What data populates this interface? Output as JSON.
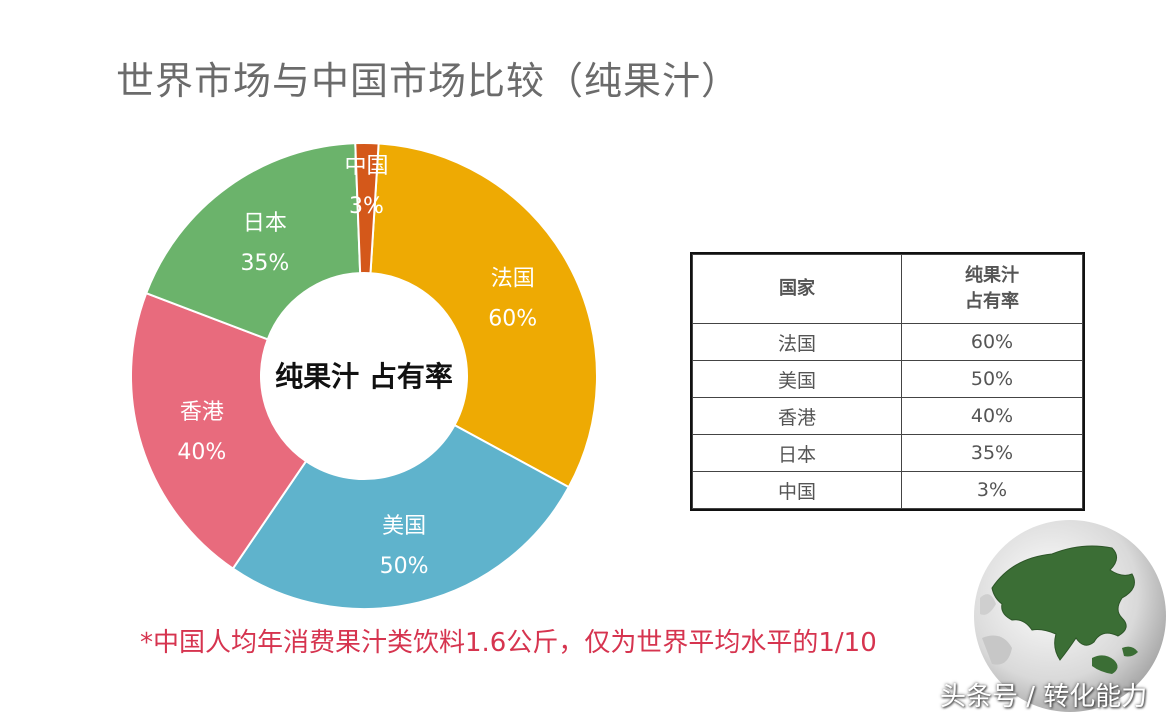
{
  "title": "世界市场与中国市场比较（纯果汁）",
  "chart_data": {
    "type": "pie",
    "variant": "donut",
    "center_label": "纯果汁  占有率",
    "slices": [
      {
        "name": "法国",
        "value": 60,
        "label": "60%",
        "color": "#eeaa03"
      },
      {
        "name": "美国",
        "value": 50,
        "label": "50%",
        "color": "#5fb3cc"
      },
      {
        "name": "香港",
        "value": 40,
        "label": "40%",
        "color": "#e86b7d"
      },
      {
        "name": "日本",
        "value": 35,
        "label": "35%",
        "color": "#6bb36b"
      },
      {
        "name": "中国",
        "value": 3,
        "label": "3%",
        "color": "#d4581a"
      }
    ]
  },
  "table": {
    "headers": [
      "国家",
      "纯果汁\n占有率"
    ],
    "rows": [
      [
        "法国",
        "60%"
      ],
      [
        "美国",
        "50%"
      ],
      [
        "香港",
        "40%"
      ],
      [
        "日本",
        "35%"
      ],
      [
        "中国",
        "3%"
      ]
    ]
  },
  "note": "*中国人均年消费果汁类饮料1.6公斤，仅为世界平均水平的1/10",
  "watermark": "头条号 / 转化能力",
  "globe_icon": "globe-asia-icon"
}
